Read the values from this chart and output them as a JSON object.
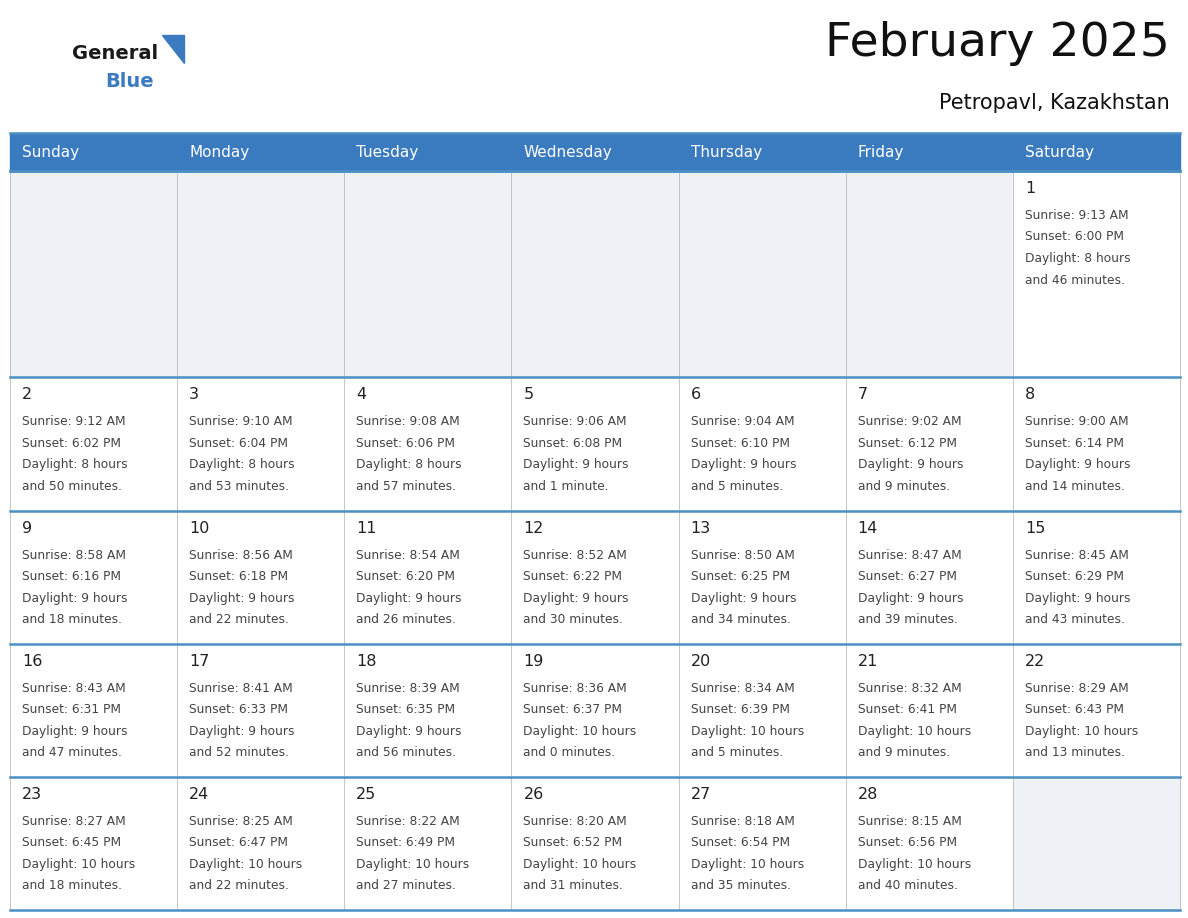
{
  "title": "February 2025",
  "subtitle": "Petropavl, Kazakhstan",
  "header_color": "#3a7abf",
  "header_text_color": "#ffffff",
  "day_names": [
    "Sunday",
    "Monday",
    "Tuesday",
    "Wednesday",
    "Thursday",
    "Friday",
    "Saturday"
  ],
  "grid_line_color": "#4a90c4",
  "cell_bg_empty": "#eef2f7",
  "cell_bg_filled": "#ffffff",
  "text_color": "#444444",
  "day_num_color": "#222222",
  "logo_general_color": "#1a1a1a",
  "logo_blue_color": "#3a7abf",
  "calendar": [
    [
      null,
      null,
      null,
      null,
      null,
      null,
      {
        "day": 1,
        "sunrise": "9:13 AM",
        "sunset": "6:00 PM",
        "daylight": "8 hours\nand 46 minutes."
      }
    ],
    [
      {
        "day": 2,
        "sunrise": "9:12 AM",
        "sunset": "6:02 PM",
        "daylight": "8 hours\nand 50 minutes."
      },
      {
        "day": 3,
        "sunrise": "9:10 AM",
        "sunset": "6:04 PM",
        "daylight": "8 hours\nand 53 minutes."
      },
      {
        "day": 4,
        "sunrise": "9:08 AM",
        "sunset": "6:06 PM",
        "daylight": "8 hours\nand 57 minutes."
      },
      {
        "day": 5,
        "sunrise": "9:06 AM",
        "sunset": "6:08 PM",
        "daylight": "9 hours\nand 1 minute."
      },
      {
        "day": 6,
        "sunrise": "9:04 AM",
        "sunset": "6:10 PM",
        "daylight": "9 hours\nand 5 minutes."
      },
      {
        "day": 7,
        "sunrise": "9:02 AM",
        "sunset": "6:12 PM",
        "daylight": "9 hours\nand 9 minutes."
      },
      {
        "day": 8,
        "sunrise": "9:00 AM",
        "sunset": "6:14 PM",
        "daylight": "9 hours\nand 14 minutes."
      }
    ],
    [
      {
        "day": 9,
        "sunrise": "8:58 AM",
        "sunset": "6:16 PM",
        "daylight": "9 hours\nand 18 minutes."
      },
      {
        "day": 10,
        "sunrise": "8:56 AM",
        "sunset": "6:18 PM",
        "daylight": "9 hours\nand 22 minutes."
      },
      {
        "day": 11,
        "sunrise": "8:54 AM",
        "sunset": "6:20 PM",
        "daylight": "9 hours\nand 26 minutes."
      },
      {
        "day": 12,
        "sunrise": "8:52 AM",
        "sunset": "6:22 PM",
        "daylight": "9 hours\nand 30 minutes."
      },
      {
        "day": 13,
        "sunrise": "8:50 AM",
        "sunset": "6:25 PM",
        "daylight": "9 hours\nand 34 minutes."
      },
      {
        "day": 14,
        "sunrise": "8:47 AM",
        "sunset": "6:27 PM",
        "daylight": "9 hours\nand 39 minutes."
      },
      {
        "day": 15,
        "sunrise": "8:45 AM",
        "sunset": "6:29 PM",
        "daylight": "9 hours\nand 43 minutes."
      }
    ],
    [
      {
        "day": 16,
        "sunrise": "8:43 AM",
        "sunset": "6:31 PM",
        "daylight": "9 hours\nand 47 minutes."
      },
      {
        "day": 17,
        "sunrise": "8:41 AM",
        "sunset": "6:33 PM",
        "daylight": "9 hours\nand 52 minutes."
      },
      {
        "day": 18,
        "sunrise": "8:39 AM",
        "sunset": "6:35 PM",
        "daylight": "9 hours\nand 56 minutes."
      },
      {
        "day": 19,
        "sunrise": "8:36 AM",
        "sunset": "6:37 PM",
        "daylight": "10 hours\nand 0 minutes."
      },
      {
        "day": 20,
        "sunrise": "8:34 AM",
        "sunset": "6:39 PM",
        "daylight": "10 hours\nand 5 minutes."
      },
      {
        "day": 21,
        "sunrise": "8:32 AM",
        "sunset": "6:41 PM",
        "daylight": "10 hours\nand 9 minutes."
      },
      {
        "day": 22,
        "sunrise": "8:29 AM",
        "sunset": "6:43 PM",
        "daylight": "10 hours\nand 13 minutes."
      }
    ],
    [
      {
        "day": 23,
        "sunrise": "8:27 AM",
        "sunset": "6:45 PM",
        "daylight": "10 hours\nand 18 minutes."
      },
      {
        "day": 24,
        "sunrise": "8:25 AM",
        "sunset": "6:47 PM",
        "daylight": "10 hours\nand 22 minutes."
      },
      {
        "day": 25,
        "sunrise": "8:22 AM",
        "sunset": "6:49 PM",
        "daylight": "10 hours\nand 27 minutes."
      },
      {
        "day": 26,
        "sunrise": "8:20 AM",
        "sunset": "6:52 PM",
        "daylight": "10 hours\nand 31 minutes."
      },
      {
        "day": 27,
        "sunrise": "8:18 AM",
        "sunset": "6:54 PM",
        "daylight": "10 hours\nand 35 minutes."
      },
      {
        "day": 28,
        "sunrise": "8:15 AM",
        "sunset": "6:56 PM",
        "daylight": "10 hours\nand 40 minutes."
      },
      null
    ]
  ],
  "row_height_ratios": [
    1.55,
    1.0,
    1.0,
    1.0,
    1.0
  ]
}
